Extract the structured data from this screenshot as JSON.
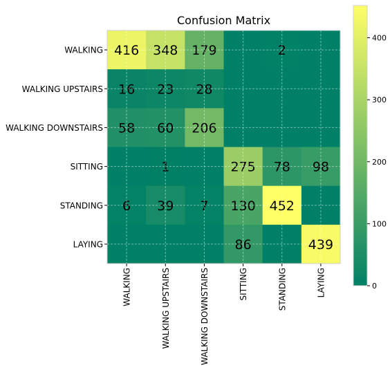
{
  "chart_data": {
    "type": "heatmap",
    "title": "Confusion Matrix",
    "rows": [
      "WALKING",
      "WALKING UPSTAIRS",
      "WALKING DOWNSTAIRS",
      "SITTING",
      "STANDING",
      "LAYING"
    ],
    "cols": [
      "WALKING",
      "WALKING UPSTAIRS",
      "WALKING DOWNSTAIRS",
      "SITTING",
      "STANDING",
      "LAYING"
    ],
    "values": [
      [
        416,
        348,
        179,
        0,
        2,
        0
      ],
      [
        16,
        23,
        28,
        0,
        0,
        0
      ],
      [
        58,
        60,
        206,
        0,
        0,
        0
      ],
      [
        0,
        1,
        0,
        275,
        78,
        98
      ],
      [
        6,
        39,
        7,
        130,
        452,
        0
      ],
      [
        0,
        0,
        0,
        86,
        0,
        439
      ]
    ],
    "colormap": "summer",
    "color_low": "#008066",
    "color_high": "#ffff66",
    "vmin": 0,
    "vmax": 452,
    "colorbar_ticks": [
      0,
      100,
      200,
      300,
      400
    ],
    "hide_zero_labels": true,
    "grid": true
  }
}
